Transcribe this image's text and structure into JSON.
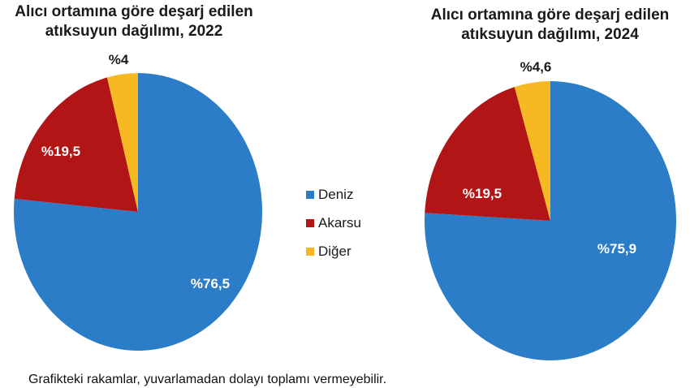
{
  "charts": [
    {
      "title_line1": "Alıcı ortamına göre deşarj edilen",
      "title_line2": "atıksuyun dağılımı, 2022",
      "labels": {
        "deniz": "%76,5",
        "akarsu": "%19,5",
        "diger": "%4"
      }
    },
    {
      "title_line1": "Alıcı ortamına göre deşarj edilen",
      "title_line2": "atıksuyun dağılımı, 2024",
      "labels": {
        "deniz": "%75,9",
        "akarsu": "%19,5",
        "diger": "%4,6"
      }
    }
  ],
  "legend": [
    {
      "label": "Deniz",
      "color": "#2a7dc6"
    },
    {
      "label": "Akarsu",
      "color": "#b21515"
    },
    {
      "label": "Diğer",
      "color": "#f7b923"
    }
  ],
  "note": "Grafikteki rakamlar, yuvarlamadan dolayı toplamı vermeyebilir.",
  "chart_data": [
    {
      "type": "pie",
      "title": "Alıcı ortamına göre deşarj edilen atıksuyun dağılımı, 2022",
      "categories": [
        "Deniz",
        "Akarsu",
        "Diğer"
      ],
      "values": [
        76.5,
        19.5,
        4.0
      ],
      "value_labels": [
        "%76,5",
        "%19,5",
        "%4"
      ],
      "colors": [
        "#2a7dc6",
        "#b21515",
        "#f7b923"
      ],
      "start_angle": "12 o'clock, clockwise",
      "legend_position": "between charts (center)"
    },
    {
      "type": "pie",
      "title": "Alıcı ortamına göre deşarj edilen atıksuyun dağılımı, 2024",
      "categories": [
        "Deniz",
        "Akarsu",
        "Diğer"
      ],
      "values": [
        75.9,
        19.5,
        4.6
      ],
      "value_labels": [
        "%75,9",
        "%19,5",
        "%4,6"
      ],
      "colors": [
        "#2a7dc6",
        "#b21515",
        "#f7b923"
      ],
      "start_angle": "12 o'clock, clockwise",
      "legend_position": "between charts (center)"
    }
  ]
}
